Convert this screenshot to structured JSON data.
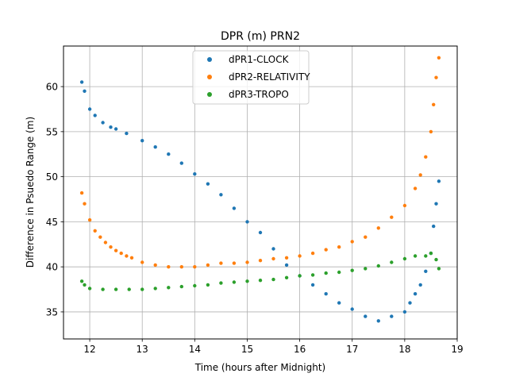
{
  "chart_data": {
    "type": "scatter",
    "title": "DPR (m) PRN2",
    "xlabel": "Time (hours after Midnight)",
    "ylabel": "Difference in Psuedo Range (m)",
    "xlim": [
      11.5,
      19.0
    ],
    "ylim": [
      32.0,
      64.5
    ],
    "xticks": [
      12,
      13,
      14,
      15,
      16,
      17,
      18,
      19
    ],
    "yticks": [
      35,
      40,
      45,
      50,
      55,
      60
    ],
    "grid": true,
    "legend_position": "top-center",
    "series": [
      {
        "name": "dPR1-CLOCK",
        "color": "#1f77b4",
        "x": [
          11.85,
          11.9,
          12.0,
          12.1,
          12.25,
          12.4,
          12.5,
          12.7,
          13.0,
          13.25,
          13.5,
          13.75,
          14.0,
          14.25,
          14.5,
          14.75,
          15.0,
          15.25,
          15.5,
          15.75,
          16.0,
          16.25,
          16.5,
          16.75,
          17.0,
          17.25,
          17.5,
          17.75,
          18.0,
          18.1,
          18.2,
          18.3,
          18.4,
          18.5,
          18.55,
          18.6,
          18.65
        ],
        "y": [
          60.5,
          59.5,
          57.5,
          56.8,
          56.0,
          55.5,
          55.3,
          54.8,
          54.0,
          53.3,
          52.5,
          51.5,
          50.3,
          49.2,
          48.0,
          46.5,
          45.0,
          43.8,
          42.0,
          40.2,
          39.0,
          38.0,
          37.0,
          36.0,
          35.3,
          34.5,
          34.0,
          34.5,
          35.0,
          36.0,
          37.0,
          38.0,
          39.5,
          41.5,
          44.5,
          47.0,
          49.5
        ]
      },
      {
        "name": "dPR2-RELATIVITY",
        "color": "#ff7f0e",
        "x": [
          11.85,
          11.9,
          12.0,
          12.1,
          12.2,
          12.3,
          12.4,
          12.5,
          12.6,
          12.7,
          12.8,
          13.0,
          13.25,
          13.5,
          13.75,
          14.0,
          14.25,
          14.5,
          14.75,
          15.0,
          15.25,
          15.5,
          15.75,
          16.0,
          16.25,
          16.5,
          16.75,
          17.0,
          17.25,
          17.5,
          17.75,
          18.0,
          18.2,
          18.3,
          18.4,
          18.5,
          18.55,
          18.6,
          18.65
        ],
        "y": [
          48.2,
          47.0,
          45.2,
          44.0,
          43.3,
          42.7,
          42.2,
          41.8,
          41.5,
          41.2,
          41.0,
          40.5,
          40.2,
          40.0,
          40.0,
          40.0,
          40.2,
          40.4,
          40.4,
          40.5,
          40.7,
          40.9,
          41.0,
          41.2,
          41.5,
          41.9,
          42.2,
          42.8,
          43.3,
          44.3,
          45.5,
          46.8,
          48.7,
          50.2,
          52.2,
          55.0,
          58.0,
          61.0,
          63.2
        ]
      },
      {
        "name": "dPR3-TROPO",
        "color": "#2ca02c",
        "x": [
          11.85,
          11.9,
          12.0,
          12.25,
          12.5,
          12.75,
          13.0,
          13.25,
          13.5,
          13.75,
          14.0,
          14.25,
          14.5,
          14.75,
          15.0,
          15.25,
          15.5,
          15.75,
          16.0,
          16.25,
          16.5,
          16.75,
          17.0,
          17.25,
          17.5,
          17.75,
          18.0,
          18.2,
          18.4,
          18.5,
          18.6,
          18.65
        ],
        "y": [
          38.4,
          38.0,
          37.6,
          37.5,
          37.5,
          37.5,
          37.5,
          37.6,
          37.7,
          37.8,
          37.9,
          38.0,
          38.2,
          38.3,
          38.4,
          38.5,
          38.6,
          38.8,
          39.0,
          39.1,
          39.3,
          39.4,
          39.6,
          39.8,
          40.1,
          40.5,
          40.9,
          41.2,
          41.2,
          41.5,
          40.8,
          39.8
        ]
      }
    ]
  }
}
